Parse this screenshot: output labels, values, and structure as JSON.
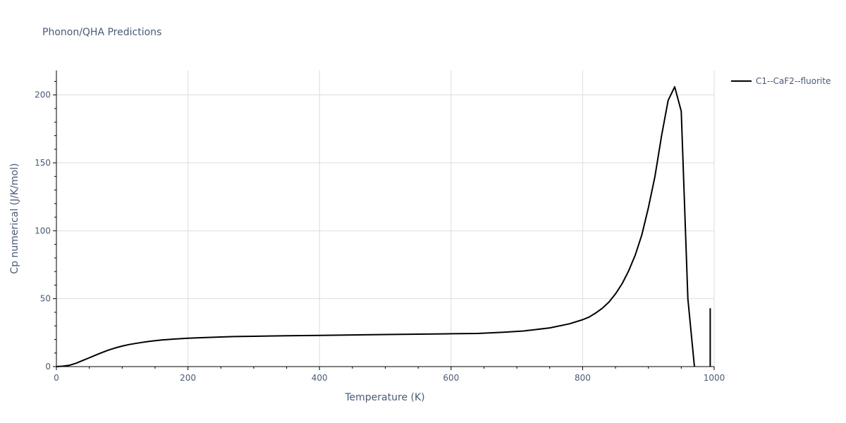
{
  "chart_data": {
    "type": "line",
    "title": "Phonon/QHA Predictions",
    "xlabel": "Temperature (K)",
    "ylabel": "Cp numerical (J/K/mol)",
    "xlim": [
      0,
      1000
    ],
    "ylim": [
      0,
      218
    ],
    "x_ticks": [
      0,
      200,
      400,
      600,
      800,
      1000
    ],
    "y_ticks": [
      0,
      50,
      100,
      150,
      200
    ],
    "grid": true,
    "legend_position": "top-right outside",
    "series": [
      {
        "name": "C1--CaF2--fluorite",
        "color": "#000000",
        "segments": [
          {
            "x": [
              0,
              10,
              20,
              30,
              40,
              50,
              60,
              70,
              80,
              90,
              100,
              110,
              120,
              130,
              140,
              150,
              160,
              180,
              200,
              220,
              250,
              270,
              300,
              350,
              400,
              450,
              500,
              550,
              600,
              640,
              680,
              710,
              750,
              780,
              800,
              810,
              820,
              830,
              840,
              850,
              860,
              870,
              880,
              890,
              900,
              910,
              920,
              930,
              940,
              950,
              960,
              970
            ],
            "y": [
              0,
              0.3,
              1.0,
              2.5,
              4.5,
              6.5,
              8.5,
              10.5,
              12.3,
              13.8,
              15.1,
              16.2,
              17.0,
              17.8,
              18.5,
              19.1,
              19.6,
              20.3,
              20.9,
              21.3,
              21.8,
              22.1,
              22.3,
              22.7,
              23.0,
              23.3,
              23.6,
              23.9,
              24.2,
              24.4,
              25.3,
              26.2,
              28.5,
              31.5,
              34.5,
              36.5,
              39.5,
              43.0,
              47.5,
              53.5,
              61.0,
              70.5,
              82.0,
              97.0,
              117.0,
              140.0,
              170.0,
              196.0,
              206.0,
              188.0,
              50.0,
              0
            ]
          },
          {
            "x": [
              994,
              994
            ],
            "y": [
              0,
              43
            ]
          }
        ]
      }
    ]
  }
}
